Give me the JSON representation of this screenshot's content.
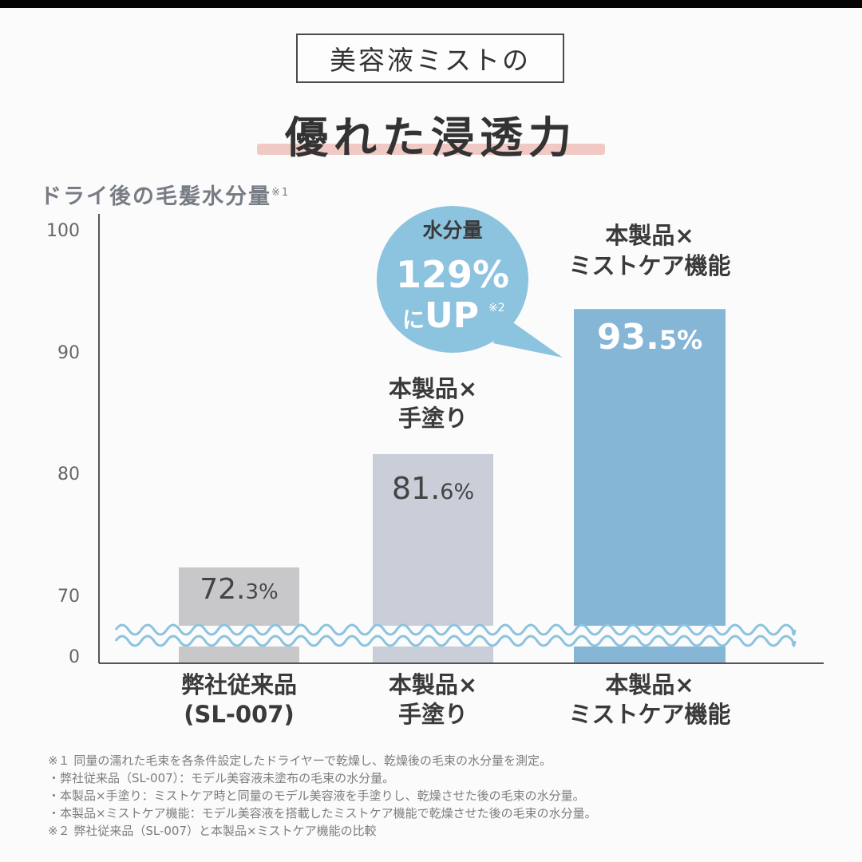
{
  "header": {
    "badge": "美容液ミストの",
    "title": "優れた浸透力"
  },
  "y_title": "ドライ後の毛髪水分量",
  "y_title_note": "※1",
  "callout": {
    "line1": "水分量",
    "line2": "129%",
    "line3a": "に",
    "line3b": "UP",
    "note": "※2",
    "color": "#8cc3df"
  },
  "chart_data": {
    "type": "bar",
    "categories": [
      [
        "弊社従来品",
        "(SL-007)"
      ],
      [
        "本製品×",
        "手塗り"
      ],
      [
        "本製品×",
        "ミストケア機能"
      ]
    ],
    "top_labels": [
      [],
      [
        "本製品×",
        "手塗り"
      ],
      [
        "本製品×",
        "ミストケア機能"
      ]
    ],
    "values": [
      72.3,
      81.6,
      93.5
    ],
    "value_labels": [
      {
        "main": "72.",
        "small": "3%",
        "color": "#444444"
      },
      {
        "main": "81.",
        "small": "6%",
        "color": "#444444"
      },
      {
        "main": "93.",
        "small": "5%",
        "color": "#ffffff"
      }
    ],
    "bar_colors": [
      "#c8c8ca",
      "#c9ced8",
      "#86b6d6"
    ],
    "yticks": [
      "100",
      "90",
      "80",
      "70",
      "0"
    ],
    "axis_break": true,
    "ylim": [
      70,
      100
    ]
  },
  "footnotes": [
    "※１ 同量の濡れた毛束を各条件設定したドライヤーで乾燥し、乾燥後の毛束の水分量を測定。",
    "・弊社従来品（SL-007）：モデル美容液未塗布の毛束の水分量。",
    "・本製品×手塗り：ミストケア時と同量のモデル美容液を手塗りし、乾燥させた後の毛束の水分量。",
    "・本製品×ミストケア機能：モデル美容液を搭載したミストケア機能で乾燥させた後の毛束の水分量。",
    "※２ 弊社従来品（SL-007）と本製品×ミストケア機能の比較"
  ]
}
